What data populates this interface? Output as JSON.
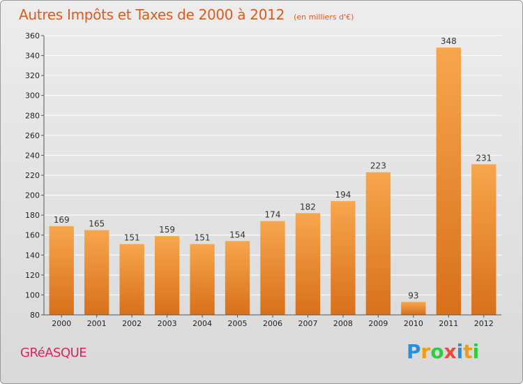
{
  "header": {
    "title": "Autres Impôts et Taxes de 2000 à 2012",
    "subtitle": "(en milliers d'€)"
  },
  "footer": {
    "commune": "GRéASQUE",
    "brand": "Proxiti",
    "brand_letters": [
      "P",
      "r",
      "o",
      "x",
      "i",
      "t",
      "i"
    ],
    "brand_colors": [
      "#2a8fd6",
      "#f39c12",
      "#2ecc40",
      "#e74c3c",
      "#2a8fd6",
      "#f39c12",
      "#2ecc40"
    ]
  },
  "chart_data": {
    "type": "bar",
    "title": "Autres Impôts et Taxes de 2000 à 2012",
    "subtitle": "(en milliers d'€)",
    "xlabel": "",
    "ylabel": "",
    "categories": [
      "2000",
      "2001",
      "2002",
      "2003",
      "2004",
      "2005",
      "2006",
      "2007",
      "2008",
      "2009",
      "2010",
      "2011",
      "2012"
    ],
    "values": [
      169,
      165,
      151,
      159,
      151,
      154,
      174,
      182,
      194,
      223,
      93,
      348,
      231
    ],
    "value_labels": [
      "169",
      "165",
      "151",
      "159",
      "151",
      "154",
      "174",
      "182",
      "194",
      "223",
      "93",
      "348",
      "231"
    ],
    "ylim": [
      80,
      360
    ],
    "yticks": [
      80,
      100,
      120,
      140,
      160,
      180,
      200,
      220,
      240,
      260,
      280,
      300,
      320,
      340,
      360
    ],
    "ytick_labels": [
      "80",
      "100",
      "120",
      "140",
      "160",
      "180",
      "200",
      "220",
      "240",
      "260",
      "280",
      "300",
      "320",
      "340",
      "360"
    ],
    "grid": true,
    "legend": "none",
    "colors": {
      "bar_top": "#f7a64d",
      "bar_bottom": "#d8701a",
      "gridline": "#ffffff",
      "axis": "#555555"
    }
  }
}
